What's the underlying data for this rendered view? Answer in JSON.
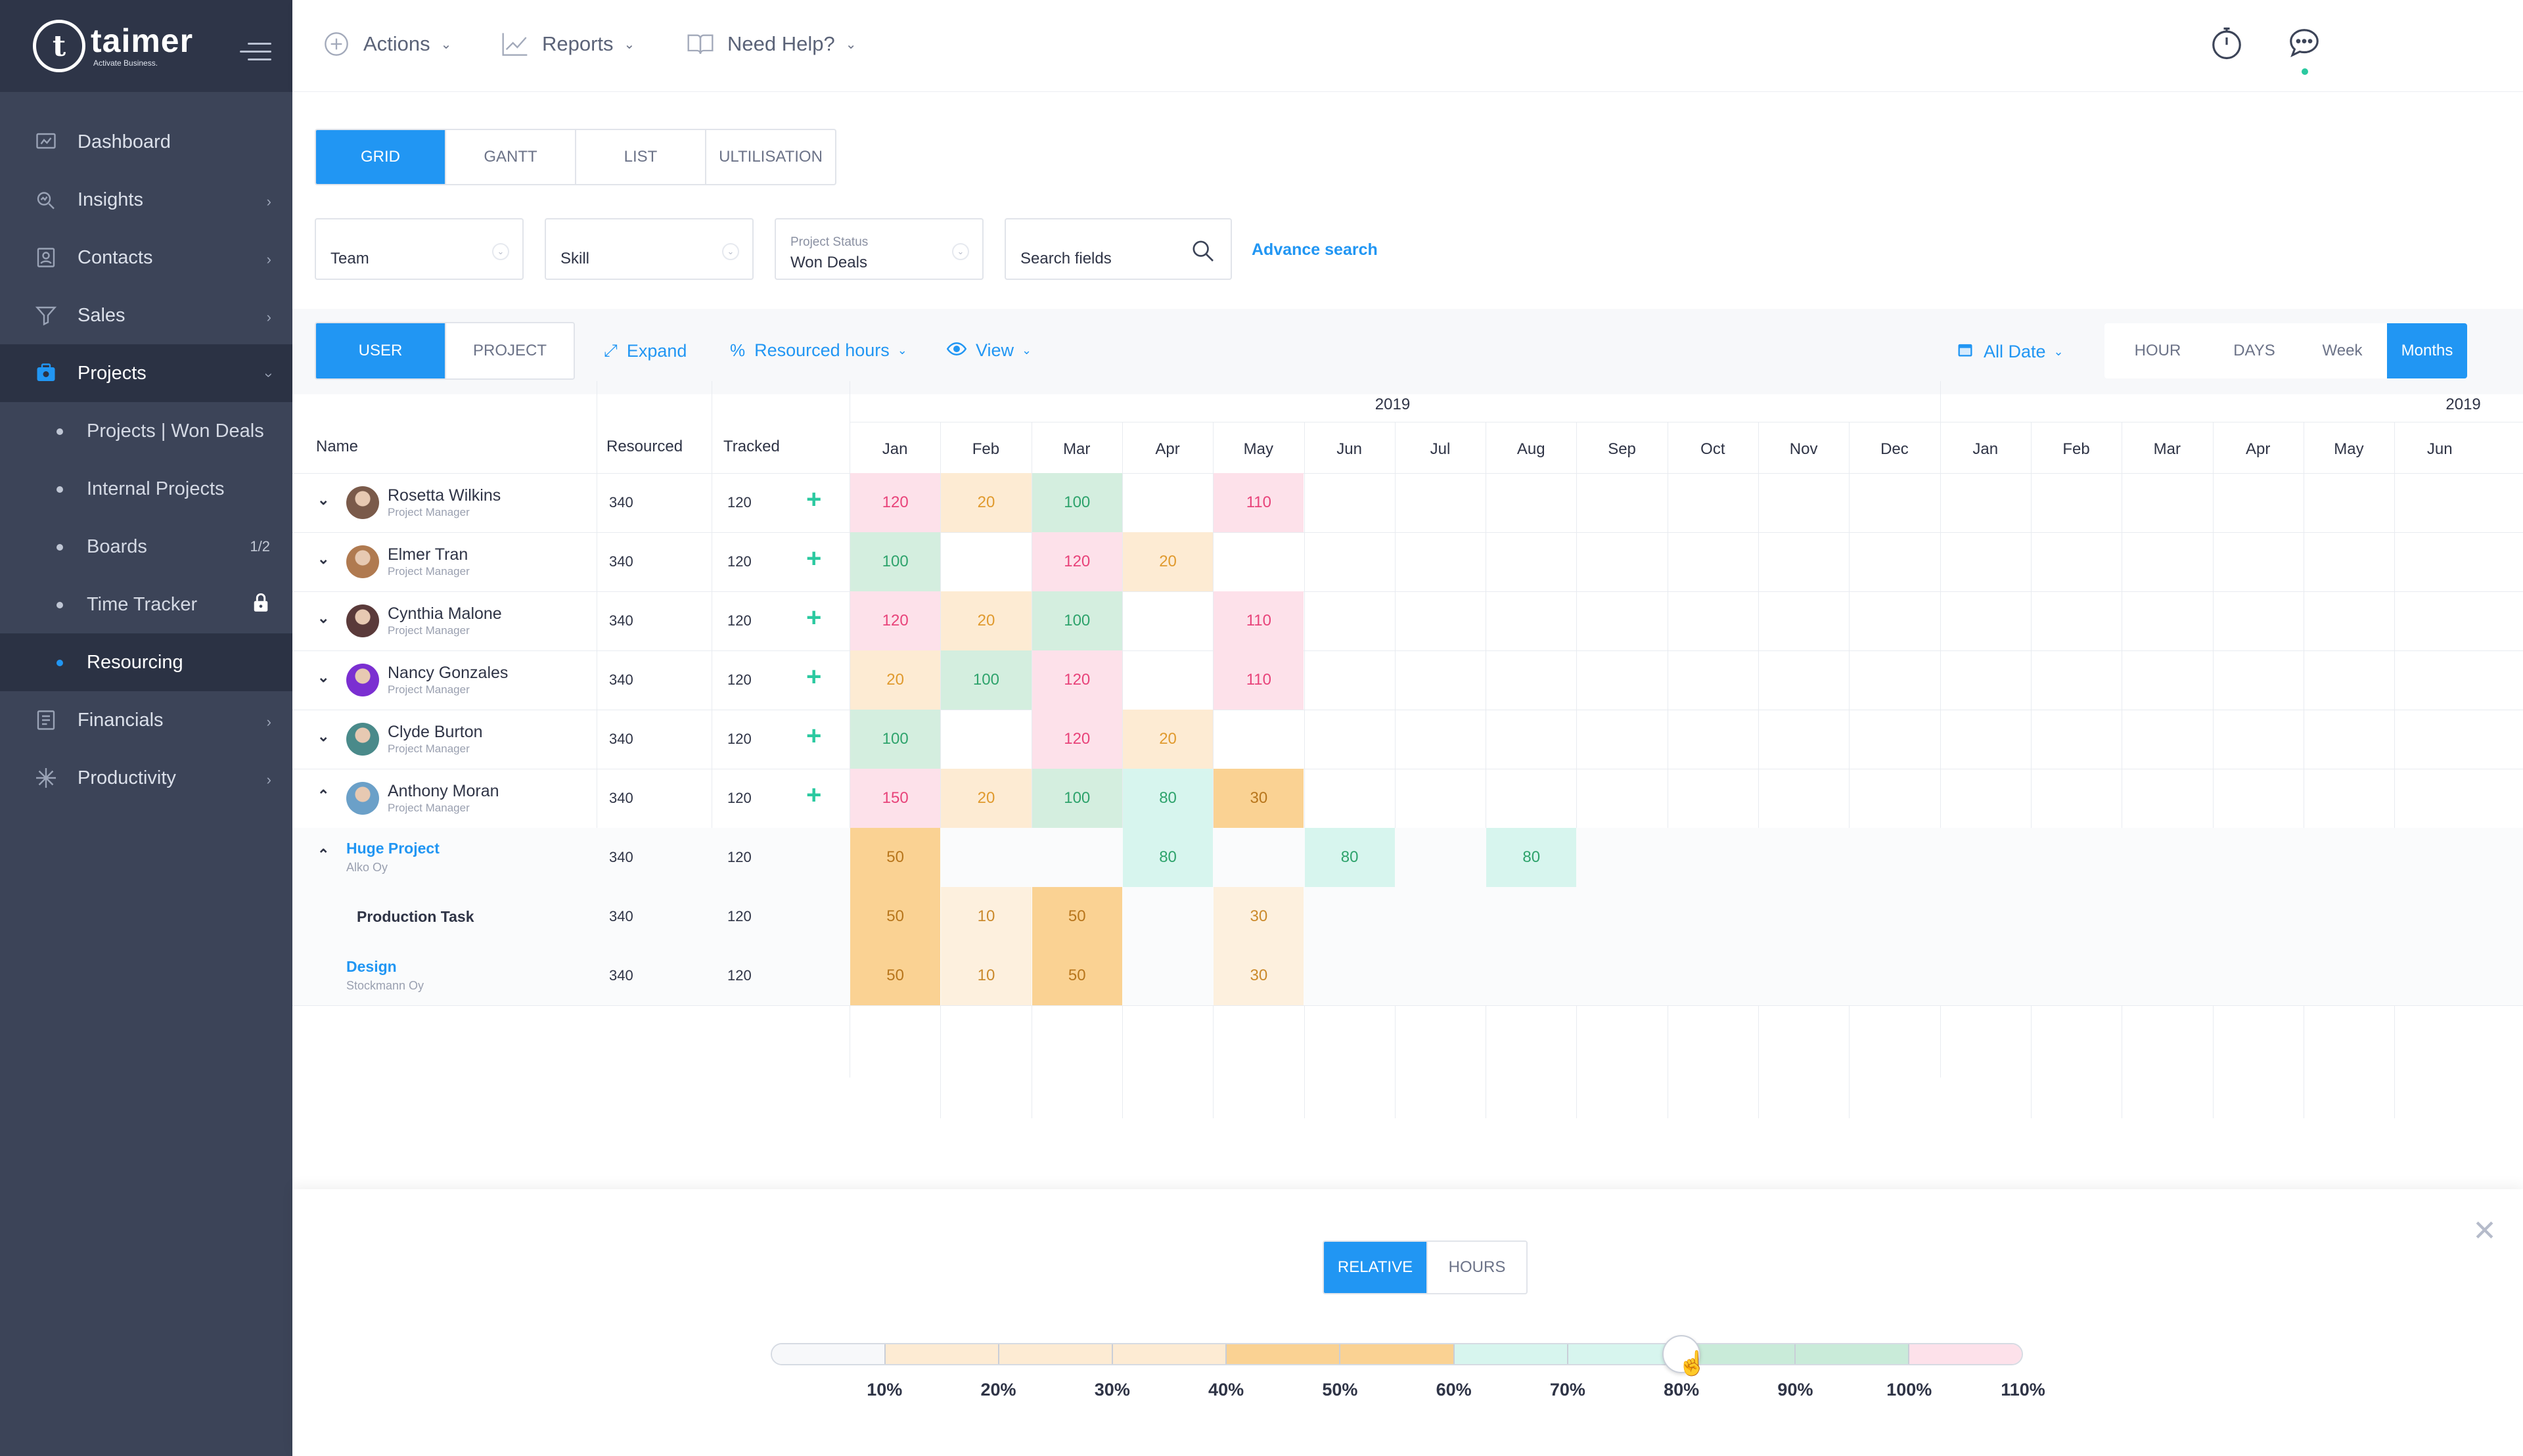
{
  "app": {
    "logo_name": "taimer",
    "logo_tagline": "Activate Business."
  },
  "sidebar": {
    "items": [
      {
        "label": "Dashboard",
        "icon": "dashboard-icon"
      },
      {
        "label": "Insights",
        "icon": "insights-icon"
      },
      {
        "label": "Contacts",
        "icon": "contacts-icon"
      },
      {
        "label": "Sales",
        "icon": "filter-icon"
      },
      {
        "label": "Projects",
        "icon": "projects-icon"
      },
      {
        "label": "Financials",
        "icon": "financials-icon"
      },
      {
        "label": "Productivity",
        "icon": "productivity-icon"
      }
    ],
    "subitems": [
      {
        "label": "Projects | Won Deals"
      },
      {
        "label": "Internal Projects"
      },
      {
        "label": "Boards",
        "badge": "1/2"
      },
      {
        "label": "Time Tracker"
      },
      {
        "label": "Resourcing"
      }
    ]
  },
  "topbar": {
    "actions": "Actions",
    "reports": "Reports",
    "help": "Need Help?"
  },
  "view_tabs": [
    "GRID",
    "GANTT",
    "LIST",
    "ULTILISATION"
  ],
  "filters": {
    "team": "Team",
    "skill": "Skill",
    "project_status_label": "Project Status",
    "project_status_value": "Won Deals",
    "search_placeholder": "Search fields",
    "advance_search": "Advance search"
  },
  "toolbar": {
    "user": "USER",
    "project": "PROJECT",
    "expand": "Expand",
    "resourced_hours": "Resourced hours",
    "view": "View",
    "all_date": "All Date",
    "scale": [
      "HOUR",
      "DAYS",
      "Week",
      "Months"
    ]
  },
  "grid": {
    "headers": {
      "name": "Name",
      "resourced": "Resourced",
      "tracked": "Tracked"
    },
    "years": [
      "2019",
      "2019"
    ],
    "months": [
      "Jan",
      "Feb",
      "Mar",
      "Apr",
      "May",
      "Jun",
      "Jul",
      "Aug",
      "Sep",
      "Oct",
      "Nov",
      "Dec",
      "Jan",
      "Feb",
      "Mar",
      "Apr",
      "May",
      "Jun"
    ],
    "rows": [
      {
        "type": "user",
        "name": "Rosetta Wilkins",
        "role": "Project Manager",
        "resourced": "340",
        "tracked": "120",
        "arrow": "⌄",
        "cells": [
          [
            "120",
            "pink"
          ],
          [
            "20",
            "peach"
          ],
          [
            "100",
            "green"
          ],
          null,
          [
            "110",
            "pink"
          ]
        ]
      },
      {
        "type": "user",
        "name": "Elmer Tran",
        "role": "Project Manager",
        "resourced": "340",
        "tracked": "120",
        "arrow": "⌄",
        "cells": [
          [
            "100",
            "green"
          ],
          null,
          [
            "120",
            "pink"
          ],
          [
            "20",
            "peach"
          ],
          null
        ]
      },
      {
        "type": "user",
        "name": "Cynthia Malone",
        "role": "Project Manager",
        "resourced": "340",
        "tracked": "120",
        "arrow": "⌄",
        "cells": [
          [
            "120",
            "pink"
          ],
          [
            "20",
            "peach"
          ],
          [
            "100",
            "green"
          ],
          null,
          [
            "110",
            "pink"
          ]
        ]
      },
      {
        "type": "user",
        "name": "Nancy Gonzales",
        "role": "Project Manager",
        "resourced": "340",
        "tracked": "120",
        "arrow": "⌄",
        "cells": [
          [
            "20",
            "peach"
          ],
          [
            "100",
            "green"
          ],
          [
            "120",
            "pink"
          ],
          null,
          [
            "110",
            "pink"
          ]
        ]
      },
      {
        "type": "user",
        "name": "Clyde Burton",
        "role": "Project Manager",
        "resourced": "340",
        "tracked": "120",
        "arrow": "⌄",
        "cells": [
          [
            "100",
            "green"
          ],
          null,
          [
            "120",
            "pink"
          ],
          [
            "20",
            "peach"
          ],
          null
        ]
      },
      {
        "type": "user",
        "name": "Anthony Moran",
        "role": "Project Manager",
        "resourced": "340",
        "tracked": "120",
        "arrow": "⌃",
        "cells": [
          [
            "150",
            "pink"
          ],
          [
            "20",
            "peach"
          ],
          [
            "100",
            "green"
          ],
          [
            "80",
            "mint"
          ],
          [
            "30",
            "orange"
          ]
        ]
      },
      {
        "type": "project",
        "name": "Huge Project",
        "role": "Alko Oy",
        "resourced": "340",
        "tracked": "120",
        "arrow": "⌃",
        "cells": [
          [
            "50",
            "orange"
          ],
          null,
          null,
          [
            "80",
            "mint"
          ],
          null,
          [
            "80",
            "mint"
          ],
          null,
          [
            "80",
            "mint"
          ]
        ]
      },
      {
        "type": "task",
        "name": "Production Task",
        "resourced": "340",
        "tracked": "120",
        "cells": [
          [
            "50",
            "orange"
          ],
          [
            "10",
            "cream"
          ],
          [
            "50",
            "orange"
          ],
          null,
          [
            "30",
            "cream"
          ]
        ]
      },
      {
        "type": "project2",
        "name": "Design",
        "role": "Stockmann Oy",
        "resourced": "340",
        "tracked": "120",
        "cells": [
          [
            "50",
            "orange"
          ],
          [
            "10",
            "cream"
          ],
          [
            "50",
            "orange"
          ],
          null,
          [
            "30",
            "cream"
          ]
        ]
      }
    ]
  },
  "legend": {
    "modes": [
      "RELATIVE",
      "HOURS"
    ],
    "ticks": [
      "10%",
      "20%",
      "30%",
      "40%",
      "50%",
      "60%",
      "70%",
      "80%",
      "90%",
      "100%",
      "110%"
    ],
    "slider_value_percent": 80
  },
  "colors": {
    "accent": "#2196f3",
    "plus": "#2bc9a0"
  }
}
